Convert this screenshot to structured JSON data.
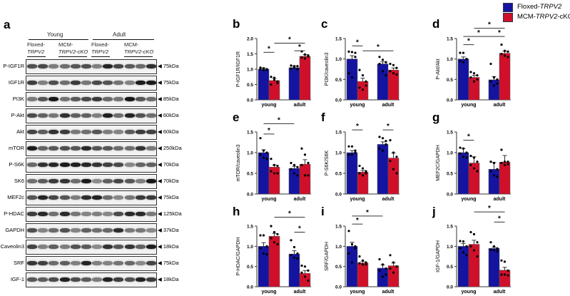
{
  "legend": [
    {
      "prefix": "Floxed-",
      "italic": "TRPV2",
      "suffix": "",
      "color": "#1414a0"
    },
    {
      "prefix": "MCM-",
      "italic": "TRPV2",
      "suffix": "-cKO",
      "color": "#d0102a"
    }
  ],
  "blot": {
    "panel_label": "a",
    "groups": [
      "Young",
      "Adult"
    ],
    "subgroups": [
      {
        "l1": "Floxed-",
        "l2": "TRPV2"
      },
      {
        "l1": "MCM-",
        "l2": "TRPV2-cKO"
      },
      {
        "l1": "Floxed-",
        "l2": "TRPV2"
      },
      {
        "l1": "MCM-",
        "l2": "TRPV2-cKO"
      }
    ],
    "rows": [
      {
        "name": "P-IGF1R",
        "kda": "75kDa"
      },
      {
        "name": "IGF1R",
        "kda": "75kDa"
      },
      {
        "name": "PI3K",
        "kda": "85kDa"
      },
      {
        "name": "P-Akt",
        "kda": "60kDa"
      },
      {
        "name": "Akt",
        "kda": "60kDa"
      },
      {
        "name": "mTOR",
        "kda": "250kDa"
      },
      {
        "name": "P-S6K",
        "kda": "70kDa"
      },
      {
        "name": "SK6",
        "kda": "70kDa"
      },
      {
        "name": "MEF2c",
        "kda": "75kDa"
      },
      {
        "name": "P-HDAC",
        "kda": "125kDa"
      },
      {
        "name": "GAPDH",
        "kda": "37kDa"
      },
      {
        "name": "Caveolin3",
        "kda": "18kDa"
      },
      {
        "name": "SRF",
        "kda": "75kDa"
      },
      {
        "name": "IGF-1",
        "kda": "18kDa"
      }
    ]
  },
  "chart_data": [
    {
      "panel": "b",
      "type": "bar",
      "ylabel": "P-IGF1R/IGF1R",
      "categories": [
        "young",
        "adult"
      ],
      "ylim": [
        0,
        2.0
      ],
      "yticks": [
        "0.0",
        "0.5",
        "1.0",
        "1.5",
        "2.0"
      ],
      "series": [
        {
          "name": "Floxed-TRPV2",
          "values": [
            1.0,
            1.05
          ],
          "err": [
            0.04,
            0.05
          ]
        },
        {
          "name": "MCM-TRPV2-cKO",
          "values": [
            0.63,
            1.42
          ],
          "err": [
            0.07,
            0.05
          ]
        }
      ],
      "points": [
        [
          1.05,
          1.03,
          0.98,
          1.0,
          0.97,
          1.0
        ],
        [
          0.75,
          0.72,
          0.55,
          0.5,
          0.65,
          0.6
        ],
        [
          1.12,
          1.1,
          1.0,
          1.02,
          1.05,
          1.1
        ],
        [
          1.58,
          1.48,
          1.45,
          1.38,
          1.35,
          1.42
        ]
      ],
      "significance": [
        {
          "bars": [
            0,
            1
          ],
          "y": 1.55,
          "label": "*"
        },
        {
          "bars": [
            1,
            3
          ],
          "y": 1.85,
          "label": "*"
        },
        {
          "bars": [
            2,
            3
          ],
          "y": 1.6,
          "label": "*"
        }
      ]
    },
    {
      "panel": "c",
      "type": "bar",
      "ylabel": "PI3K/caveolin3",
      "categories": [
        "young",
        "adult"
      ],
      "ylim": [
        0,
        1.5
      ],
      "yticks": [
        "0.0",
        "0.5",
        "1.0",
        "1.5"
      ],
      "series": [
        {
          "name": "Floxed-TRPV2",
          "values": [
            1.0,
            0.88
          ],
          "err": [
            0.08,
            0.05
          ]
        },
        {
          "name": "MCM-TRPV2-cKO",
          "values": [
            0.45,
            0.73
          ],
          "err": [
            0.08,
            0.05
          ]
        }
      ],
      "points": [
        [
          1.18,
          1.17,
          1.15,
          0.65,
          0.55,
          1.05
        ],
        [
          0.73,
          0.6,
          0.45,
          0.3,
          0.25,
          0.35
        ],
        [
          1.05,
          0.98,
          0.92,
          0.88,
          0.7,
          0.6
        ],
        [
          0.88,
          0.85,
          0.78,
          0.7,
          0.65,
          0.62
        ]
      ],
      "significance": [
        {
          "bars": [
            0,
            1
          ],
          "y": 1.32,
          "label": "*"
        },
        {
          "bars": [
            1,
            3
          ],
          "y": 1.2,
          "label": "*"
        }
      ]
    },
    {
      "panel": "d",
      "type": "bar",
      "ylabel": "P-Akt/Akt",
      "categories": [
        "young",
        "adult"
      ],
      "ylim": [
        0,
        1.5
      ],
      "yticks": [
        "0.0",
        "0.5",
        "1.0",
        "1.5"
      ],
      "series": [
        {
          "name": "Floxed-TRPV2",
          "values": [
            1.0,
            0.49
          ],
          "err": [
            0.05,
            0.08
          ]
        },
        {
          "name": "MCM-TRPV2-cKO",
          "values": [
            0.55,
            1.14
          ],
          "err": [
            0.05,
            0.05
          ]
        }
      ],
      "points": [
        [
          1.15,
          1.15,
          1.0,
          0.95,
          0.92,
          1.0
        ],
        [
          0.68,
          0.65,
          0.6,
          0.55,
          0.45,
          0.5
        ],
        [
          0.88,
          0.55,
          0.5,
          0.45,
          0.35,
          0.4
        ],
        [
          1.35,
          1.2,
          1.18,
          1.12,
          1.08,
          1.05
        ]
      ],
      "significance": [
        {
          "bars": [
            0,
            1
          ],
          "y": 1.35,
          "label": "*"
        },
        {
          "bars": [
            0,
            2
          ],
          "y": 1.55,
          "label": "*"
        },
        {
          "bars": [
            2,
            3
          ],
          "y": 1.55,
          "label": "*"
        },
        {
          "bars": [
            1,
            3
          ],
          "y": 1.75,
          "label": "*"
        }
      ]
    },
    {
      "panel": "e",
      "type": "bar",
      "ylabel": "mTOR/caveolin3",
      "categories": [
        "young",
        "adult"
      ],
      "ylim": [
        0,
        1.5
      ],
      "yticks": [
        "0.0",
        "0.5",
        "1.0",
        "1.5"
      ],
      "series": [
        {
          "name": "Floxed-TRPV2",
          "values": [
            1.0,
            0.62
          ],
          "err": [
            0.07,
            0.05
          ]
        },
        {
          "name": "MCM-TRPV2-cKO",
          "values": [
            0.65,
            0.72
          ],
          "err": [
            0.05,
            0.11
          ]
        }
      ],
      "points": [
        [
          1.35,
          1.05,
          1.0,
          0.95,
          0.88,
          0.85
        ],
        [
          0.85,
          0.7,
          0.68,
          0.55,
          0.5,
          0.5
        ],
        [
          0.75,
          0.7,
          0.65,
          0.6,
          0.5,
          0.45
        ],
        [
          1.1,
          0.95,
          0.75,
          0.7,
          0.45,
          0.45
        ]
      ],
      "significance": [
        {
          "bars": [
            0,
            1
          ],
          "y": 1.45,
          "label": "*"
        },
        {
          "bars": [
            0,
            2
          ],
          "y": 1.7,
          "label": "*"
        }
      ]
    },
    {
      "panel": "f",
      "type": "bar",
      "ylabel": "P-S6K/S6K",
      "categories": [
        "young",
        "adult"
      ],
      "ylim": [
        0,
        1.5
      ],
      "yticks": [
        "0.0",
        "0.5",
        "1.0",
        "1.5"
      ],
      "series": [
        {
          "name": "Floxed-TRPV2",
          "values": [
            1.0,
            1.2
          ],
          "err": [
            0.05,
            0.06
          ]
        },
        {
          "name": "MCM-TRPV2-cKO",
          "values": [
            0.53,
            0.87
          ],
          "err": [
            0.04,
            0.12
          ]
        }
      ],
      "points": [
        [
          1.15,
          1.15,
          1.0,
          0.95,
          0.95,
          1.05
        ],
        [
          0.68,
          0.62,
          0.55,
          0.5,
          0.45,
          0.5
        ],
        [
          1.38,
          1.35,
          1.28,
          1.1,
          1.05,
          1.2
        ],
        [
          1.3,
          1.0,
          0.9,
          0.8,
          0.6,
          0.5
        ]
      ],
      "significance": [
        {
          "bars": [
            0,
            1
          ],
          "y": 1.55,
          "label": "*"
        },
        {
          "bars": [
            2,
            3
          ],
          "y": 1.55,
          "label": "*"
        }
      ]
    },
    {
      "panel": "g",
      "type": "bar",
      "ylabel": "MEF2C/GAPDH",
      "categories": [
        "young",
        "adult"
      ],
      "ylim": [
        0,
        1.5
      ],
      "yticks": [
        "0.0",
        "0.5",
        "1.0",
        "1.5"
      ],
      "series": [
        {
          "name": "Floxed-TRPV2",
          "values": [
            1.0,
            0.6
          ],
          "err": [
            0.1,
            0.16
          ]
        },
        {
          "name": "MCM-TRPV2-cKO",
          "values": [
            0.75,
            0.77
          ],
          "err": [
            0.15,
            0.16
          ]
        }
      ],
      "points": [
        [
          1.12,
          1.1,
          1.0,
          0.98,
          0.9,
          0.88
        ],
        [
          0.92,
          0.88,
          0.78,
          0.7,
          0.62,
          0.55
        ],
        [
          0.78,
          0.75,
          0.6,
          0.55,
          0.45,
          0.42
        ],
        [
          1.07,
          0.78,
          0.78,
          0.75,
          0.7,
          0.72
        ]
      ],
      "significance": [
        {
          "bars": [
            0,
            1
          ],
          "y": 1.3,
          "label": "*"
        }
      ]
    },
    {
      "panel": "h",
      "type": "bar",
      "ylabel": "P-HDAC/GAPDH",
      "categories": [
        "young",
        "adult"
      ],
      "ylim": [
        0,
        1.5
      ],
      "yticks": [
        "0.0",
        "0.5",
        "1.0",
        "1.5"
      ],
      "series": [
        {
          "name": "Floxed-TRPV2",
          "values": [
            1.0,
            0.81
          ],
          "err": [
            0.09,
            0.08
          ]
        },
        {
          "name": "MCM-TRPV2-cKO",
          "values": [
            1.25,
            0.33
          ],
          "err": [
            0.07,
            0.07
          ]
        }
      ],
      "points": [
        [
          1.27,
          1.27,
          1.0,
          0.95,
          0.82,
          0.8
        ],
        [
          1.5,
          1.35,
          1.3,
          1.2,
          1.1,
          1.05
        ],
        [
          1.15,
          0.98,
          0.82,
          0.78,
          0.72,
          0.7
        ],
        [
          0.52,
          0.5,
          0.4,
          0.35,
          0.25,
          0.15
        ]
      ],
      "significance": [
        {
          "bars": [
            2,
            3
          ],
          "y": 1.35,
          "label": "*"
        },
        {
          "bars": [
            1,
            3
          ],
          "y": 1.72,
          "label": "*"
        }
      ]
    },
    {
      "panel": "i",
      "type": "bar",
      "ylabel": "SRF/GAPDH",
      "categories": [
        "young",
        "adult"
      ],
      "ylim": [
        0,
        1.5
      ],
      "yticks": [
        "0.0",
        "0.5",
        "1.0",
        "1.5"
      ],
      "series": [
        {
          "name": "Floxed-TRPV2",
          "values": [
            1.0,
            0.46
          ],
          "err": [
            0.1,
            0.08
          ]
        },
        {
          "name": "MCM-TRPV2-cKO",
          "values": [
            0.59,
            0.52
          ],
          "err": [
            0.04,
            0.07
          ]
        }
      ],
      "points": [
        [
          1.38,
          1.05,
          0.95,
          0.82,
          0.6,
          1.0
        ],
        [
          0.75,
          0.65,
          0.6,
          0.58,
          0.55,
          0.55
        ],
        [
          0.68,
          0.55,
          0.45,
          0.4,
          0.25,
          0.3
        ],
        [
          0.78,
          0.6,
          0.5,
          0.45,
          0.35,
          0.5
        ]
      ],
      "significance": [
        {
          "bars": [
            0,
            1
          ],
          "y": 1.55,
          "label": "*"
        },
        {
          "bars": [
            0,
            2
          ],
          "y": 1.75,
          "label": "*"
        }
      ]
    },
    {
      "panel": "j",
      "type": "bar",
      "ylabel": "IGF-1/GAPDH",
      "categories": [
        "young",
        "adult"
      ],
      "ylim": [
        0,
        1.5
      ],
      "yticks": [
        "0.0",
        "0.5",
        "1.0",
        "1.5"
      ],
      "series": [
        {
          "name": "Floxed-TRPV2",
          "values": [
            1.0,
            0.95
          ],
          "err": [
            0.07,
            0.03
          ]
        },
        {
          "name": "MCM-TRPV2-cKO",
          "values": [
            1.05,
            0.41
          ],
          "err": [
            0.1,
            0.07
          ]
        }
      ],
      "points": [
        [
          1.13,
          1.12,
          1.0,
          0.95,
          0.85,
          0.78
        ],
        [
          1.35,
          1.3,
          1.1,
          1.0,
          0.9,
          0.75
        ],
        [
          1.1,
          1.0,
          0.95,
          0.92,
          0.9,
          0.88
        ],
        [
          0.65,
          0.62,
          0.4,
          0.3,
          0.3,
          0.28
        ]
      ],
      "significance": [
        {
          "bars": [
            2,
            3
          ],
          "y": 1.6,
          "label": "*"
        },
        {
          "bars": [
            1,
            3
          ],
          "y": 1.85,
          "label": "*"
        }
      ]
    }
  ]
}
